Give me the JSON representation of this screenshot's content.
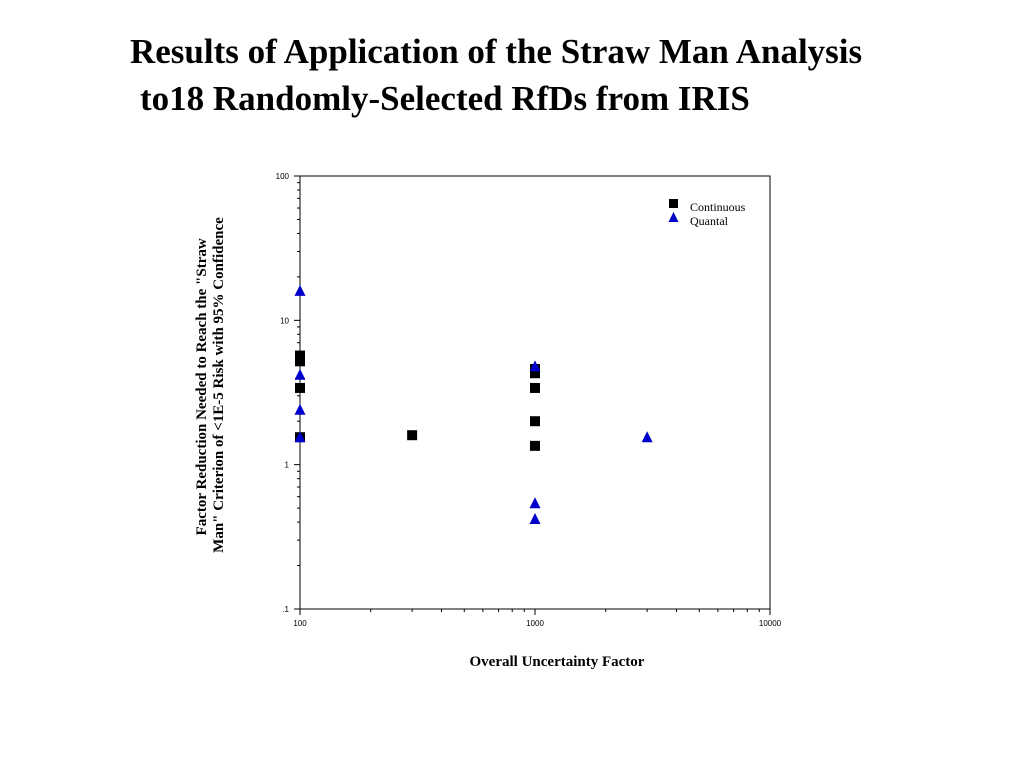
{
  "title": {
    "line1": "Results of Application of the Straw Man Analysis",
    "line2": "to18 Randomly-Selected RfDs from IRIS"
  },
  "colors": {
    "continuous": "#000000",
    "quantal": "#0000cc",
    "axes": "#000000"
  },
  "chart_data": {
    "type": "scatter",
    "xscale": "log",
    "yscale": "log",
    "xlim": [
      100,
      10000
    ],
    "ylim": [
      0.1,
      100
    ],
    "xticks": [
      100,
      1000,
      10000
    ],
    "xtick_labels": [
      "100",
      "1000",
      "10000"
    ],
    "yticks": [
      0.1,
      1,
      10,
      100
    ],
    "ytick_labels": [
      ".1",
      "1",
      "10",
      "100"
    ],
    "xlabel": "Overall Uncertainty Factor",
    "ylabel_lines": [
      "Factor Reduction Needed to Reach the \"Straw",
      "Man\" Criterion of <1E-5 Risk with 95% Confidence"
    ],
    "legend_position": "top-right",
    "grid": false,
    "series": [
      {
        "name": "Continuous",
        "marker": "square",
        "color": "#000000",
        "points": [
          {
            "x": 100,
            "y": 5.7
          },
          {
            "x": 100,
            "y": 5.2
          },
          {
            "x": 100,
            "y": 3.4
          },
          {
            "x": 100,
            "y": 1.55
          },
          {
            "x": 300,
            "y": 1.6
          },
          {
            "x": 1000,
            "y": 4.6
          },
          {
            "x": 1000,
            "y": 4.3
          },
          {
            "x": 1000,
            "y": 3.4
          },
          {
            "x": 1000,
            "y": 2.0
          },
          {
            "x": 1000,
            "y": 1.35
          }
        ]
      },
      {
        "name": "Quantal",
        "marker": "triangle",
        "color": "#0000cc",
        "points": [
          {
            "x": 100,
            "y": 16
          },
          {
            "x": 100,
            "y": 4.2
          },
          {
            "x": 100,
            "y": 2.4
          },
          {
            "x": 100,
            "y": 1.55
          },
          {
            "x": 1000,
            "y": 4.8
          },
          {
            "x": 1000,
            "y": 0.54
          },
          {
            "x": 1000,
            "y": 0.42
          },
          {
            "x": 3000,
            "y": 1.55
          }
        ]
      }
    ]
  }
}
